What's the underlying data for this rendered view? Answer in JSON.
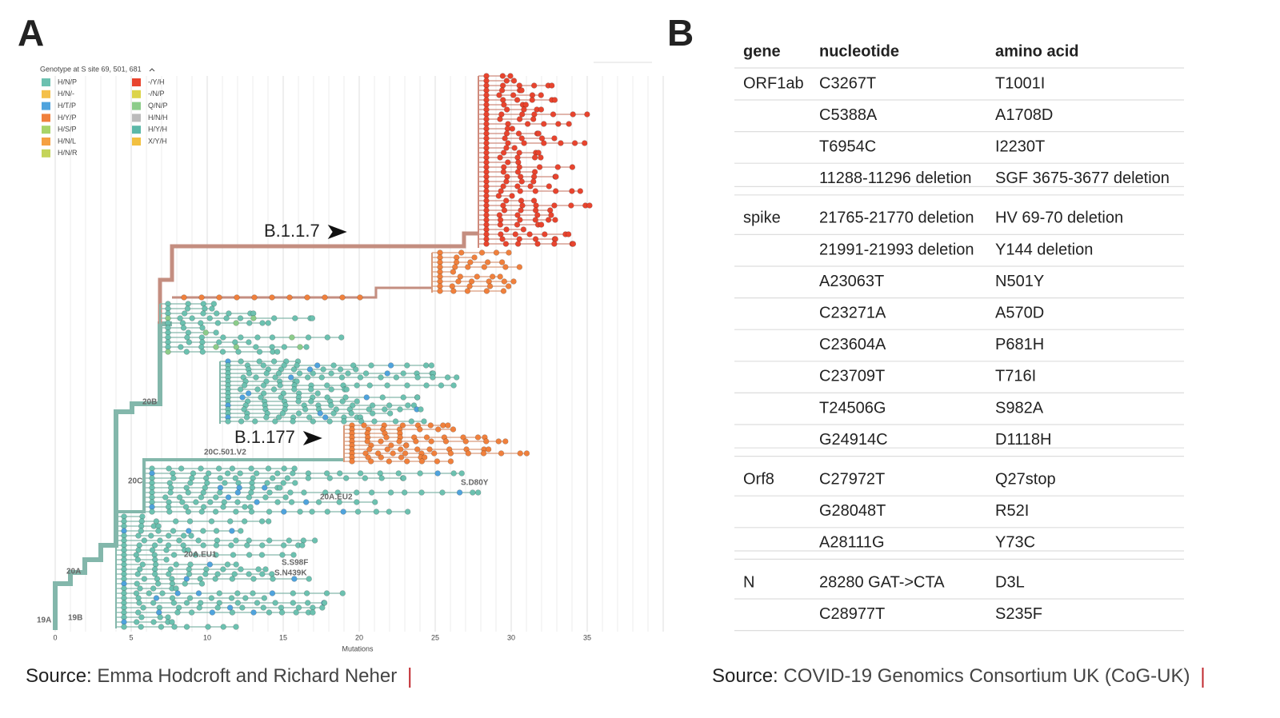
{
  "panel_a": {
    "label": "A",
    "legend": {
      "title": "Genotype at S site 69, 501, 681",
      "items": [
        {
          "label": "H/N/P",
          "color": "#6cc1b0"
        },
        {
          "label": "H/N/-",
          "color": "#f4c04a"
        },
        {
          "label": "H/T/P",
          "color": "#4fa3dd"
        },
        {
          "label": "H/Y/P",
          "color": "#f0803c"
        },
        {
          "label": "H/S/P",
          "color": "#a8d468"
        },
        {
          "label": "H/N/L",
          "color": "#f5a041"
        },
        {
          "label": "H/N/R",
          "color": "#c4d45a"
        },
        {
          "label": "-/Y/H",
          "color": "#e8442e"
        },
        {
          "label": "-/N/P",
          "color": "#dcd44a"
        },
        {
          "label": "Q/N/P",
          "color": "#8ccc8a"
        },
        {
          "label": "H/N/H",
          "color": "#bbbbbb"
        },
        {
          "label": "H/Y/H",
          "color": "#5bb8a8"
        },
        {
          "label": "X/Y/H",
          "color": "#f2c040"
        }
      ]
    },
    "clade_labels": [
      "B.1.1.7",
      "B.1.177",
      "20B",
      "20C.501.V2",
      "20C",
      "S.D80Y",
      "20A.EU2",
      "20A.EU1",
      "S.S98F",
      "S.N439K",
      "20A",
      "19A",
      "19B"
    ],
    "axis": {
      "ticks": [
        0,
        5,
        10,
        15,
        20,
        25,
        30,
        35
      ],
      "label": "Mutations"
    }
  },
  "panel_b": {
    "label": "B",
    "table": {
      "header": [
        "gene",
        "nucleotide",
        "amino acid"
      ],
      "groups": [
        {
          "gene": "ORF1ab",
          "rows": [
            [
              "C3267T",
              "T1001I"
            ],
            [
              "C5388A",
              "A1708D"
            ],
            [
              "T6954C",
              "I2230T"
            ],
            [
              "11288-11296 deletion",
              "SGF 3675-3677 deletion"
            ]
          ]
        },
        {
          "gene": "spike",
          "rows": [
            [
              "21765-21770 deletion",
              "HV 69-70 deletion"
            ],
            [
              "21991-21993 deletion",
              "Y144 deletion"
            ],
            [
              "A23063T",
              "N501Y"
            ],
            [
              "C23271A",
              "A570D"
            ],
            [
              "C23604A",
              "P681H"
            ],
            [
              "C23709T",
              "T716I"
            ],
            [
              "T24506G",
              "S982A"
            ],
            [
              "G24914C",
              "D1118H"
            ]
          ]
        },
        {
          "gene": "Orf8",
          "rows": [
            [
              "C27972T",
              "Q27stop"
            ],
            [
              "G28048T",
              "R52I"
            ],
            [
              "A28111G",
              "Y73C"
            ]
          ]
        },
        {
          "gene": "N",
          "rows": [
            [
              "28280 GAT->CTA",
              "D3L"
            ],
            [
              "C28977T",
              "S235F"
            ]
          ]
        }
      ]
    }
  },
  "sources": [
    {
      "prefix": "Source:",
      "text": "Emma Hodcroft and Richard Neher"
    },
    {
      "prefix": "Source:",
      "text": "COVID-19 Genomics Consortium UK (CoG-UK)"
    }
  ]
}
